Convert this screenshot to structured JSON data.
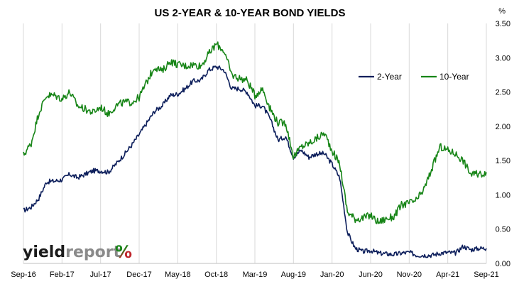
{
  "chart_data": {
    "type": "line",
    "title": "US 2-YEAR & 10-YEAR BOND YIELDS",
    "y_unit": "%",
    "ylim": [
      0,
      3.5
    ],
    "y_ticks": [
      "0.00",
      "0.50",
      "1.00",
      "1.50",
      "2.00",
      "2.50",
      "3.00",
      "3.50"
    ],
    "x_ticks": [
      "Sep-16",
      "Feb-17",
      "Jul-17",
      "Dec-17",
      "May-18",
      "Oct-18",
      "Mar-19",
      "Aug-19",
      "Jan-20",
      "Jun-20",
      "Nov-20",
      "Apr-21",
      "Sep-21"
    ],
    "grid": "vertical",
    "legend": "top-right",
    "x_month_range": [
      "2016-09",
      "2021-09"
    ],
    "series": [
      {
        "name": "2-Year",
        "color": "#0c1e5b",
        "points": [
          [
            "2016-09",
            0.77
          ],
          [
            "2016-10",
            0.82
          ],
          [
            "2016-11",
            0.95
          ],
          [
            "2016-12",
            1.19
          ],
          [
            "2017-01",
            1.2
          ],
          [
            "2017-02",
            1.22
          ],
          [
            "2017-03",
            1.3
          ],
          [
            "2017-04",
            1.25
          ],
          [
            "2017-05",
            1.3
          ],
          [
            "2017-06",
            1.35
          ],
          [
            "2017-07",
            1.35
          ],
          [
            "2017-08",
            1.33
          ],
          [
            "2017-09",
            1.45
          ],
          [
            "2017-10",
            1.58
          ],
          [
            "2017-11",
            1.72
          ],
          [
            "2017-12",
            1.88
          ],
          [
            "2018-01",
            2.05
          ],
          [
            "2018-02",
            2.22
          ],
          [
            "2018-03",
            2.3
          ],
          [
            "2018-04",
            2.45
          ],
          [
            "2018-05",
            2.47
          ],
          [
            "2018-06",
            2.55
          ],
          [
            "2018-07",
            2.66
          ],
          [
            "2018-08",
            2.67
          ],
          [
            "2018-09",
            2.82
          ],
          [
            "2018-10",
            2.87
          ],
          [
            "2018-11",
            2.82
          ],
          [
            "2018-12",
            2.55
          ],
          [
            "2019-01",
            2.55
          ],
          [
            "2019-02",
            2.5
          ],
          [
            "2019-03",
            2.3
          ],
          [
            "2019-04",
            2.3
          ],
          [
            "2019-05",
            2.1
          ],
          [
            "2019-06",
            1.8
          ],
          [
            "2019-07",
            1.85
          ],
          [
            "2019-08",
            1.55
          ],
          [
            "2019-09",
            1.65
          ],
          [
            "2019-10",
            1.55
          ],
          [
            "2019-11",
            1.6
          ],
          [
            "2019-12",
            1.6
          ],
          [
            "2020-01",
            1.45
          ],
          [
            "2020-02",
            1.25
          ],
          [
            "2020-03",
            0.45
          ],
          [
            "2020-04",
            0.22
          ],
          [
            "2020-05",
            0.17
          ],
          [
            "2020-06",
            0.19
          ],
          [
            "2020-07",
            0.15
          ],
          [
            "2020-08",
            0.14
          ],
          [
            "2020-09",
            0.13
          ],
          [
            "2020-10",
            0.15
          ],
          [
            "2020-11",
            0.16
          ],
          [
            "2020-12",
            0.12
          ],
          [
            "2021-01",
            0.12
          ],
          [
            "2021-02",
            0.12
          ],
          [
            "2021-03",
            0.15
          ],
          [
            "2021-04",
            0.16
          ],
          [
            "2021-05",
            0.15
          ],
          [
            "2021-06",
            0.25
          ],
          [
            "2021-07",
            0.2
          ],
          [
            "2021-08",
            0.22
          ],
          [
            "2021-09",
            0.22
          ]
        ]
      },
      {
        "name": "10-Year",
        "color": "#178517",
        "points": [
          [
            "2016-09",
            1.58
          ],
          [
            "2016-10",
            1.75
          ],
          [
            "2016-11",
            2.2
          ],
          [
            "2016-12",
            2.45
          ],
          [
            "2017-01",
            2.45
          ],
          [
            "2017-02",
            2.4
          ],
          [
            "2017-03",
            2.5
          ],
          [
            "2017-04",
            2.3
          ],
          [
            "2017-05",
            2.25
          ],
          [
            "2017-06",
            2.2
          ],
          [
            "2017-07",
            2.28
          ],
          [
            "2017-08",
            2.18
          ],
          [
            "2017-09",
            2.3
          ],
          [
            "2017-10",
            2.35
          ],
          [
            "2017-11",
            2.35
          ],
          [
            "2017-12",
            2.42
          ],
          [
            "2018-01",
            2.65
          ],
          [
            "2018-02",
            2.87
          ],
          [
            "2018-03",
            2.8
          ],
          [
            "2018-04",
            2.95
          ],
          [
            "2018-05",
            2.9
          ],
          [
            "2018-06",
            2.88
          ],
          [
            "2018-07",
            2.9
          ],
          [
            "2018-08",
            2.88
          ],
          [
            "2018-09",
            3.05
          ],
          [
            "2018-10",
            3.2
          ],
          [
            "2018-11",
            3.1
          ],
          [
            "2018-12",
            2.75
          ],
          [
            "2019-01",
            2.7
          ],
          [
            "2019-02",
            2.67
          ],
          [
            "2019-03",
            2.45
          ],
          [
            "2019-04",
            2.55
          ],
          [
            "2019-05",
            2.25
          ],
          [
            "2019-06",
            2.05
          ],
          [
            "2019-07",
            2.05
          ],
          [
            "2019-08",
            1.55
          ],
          [
            "2019-09",
            1.7
          ],
          [
            "2019-10",
            1.75
          ],
          [
            "2019-11",
            1.82
          ],
          [
            "2019-12",
            1.9
          ],
          [
            "2020-01",
            1.65
          ],
          [
            "2020-02",
            1.45
          ],
          [
            "2020-03",
            0.75
          ],
          [
            "2020-04",
            0.65
          ],
          [
            "2020-05",
            0.66
          ],
          [
            "2020-06",
            0.7
          ],
          [
            "2020-07",
            0.6
          ],
          [
            "2020-08",
            0.65
          ],
          [
            "2020-09",
            0.68
          ],
          [
            "2020-10",
            0.85
          ],
          [
            "2020-11",
            0.88
          ],
          [
            "2020-12",
            0.92
          ],
          [
            "2021-01",
            1.1
          ],
          [
            "2021-02",
            1.4
          ],
          [
            "2021-03",
            1.7
          ],
          [
            "2021-04",
            1.65
          ],
          [
            "2021-05",
            1.6
          ],
          [
            "2021-06",
            1.5
          ],
          [
            "2021-07",
            1.3
          ],
          [
            "2021-08",
            1.3
          ],
          [
            "2021-09",
            1.33
          ]
        ]
      }
    ]
  },
  "logo": {
    "word_dark": "yield",
    "word_light": "report",
    "pct": "%",
    "color_dark": "#1a1a1a",
    "color_light": "#8a8a8a",
    "color_pct_top": "#178517",
    "color_pct_bottom": "#c0272d"
  }
}
